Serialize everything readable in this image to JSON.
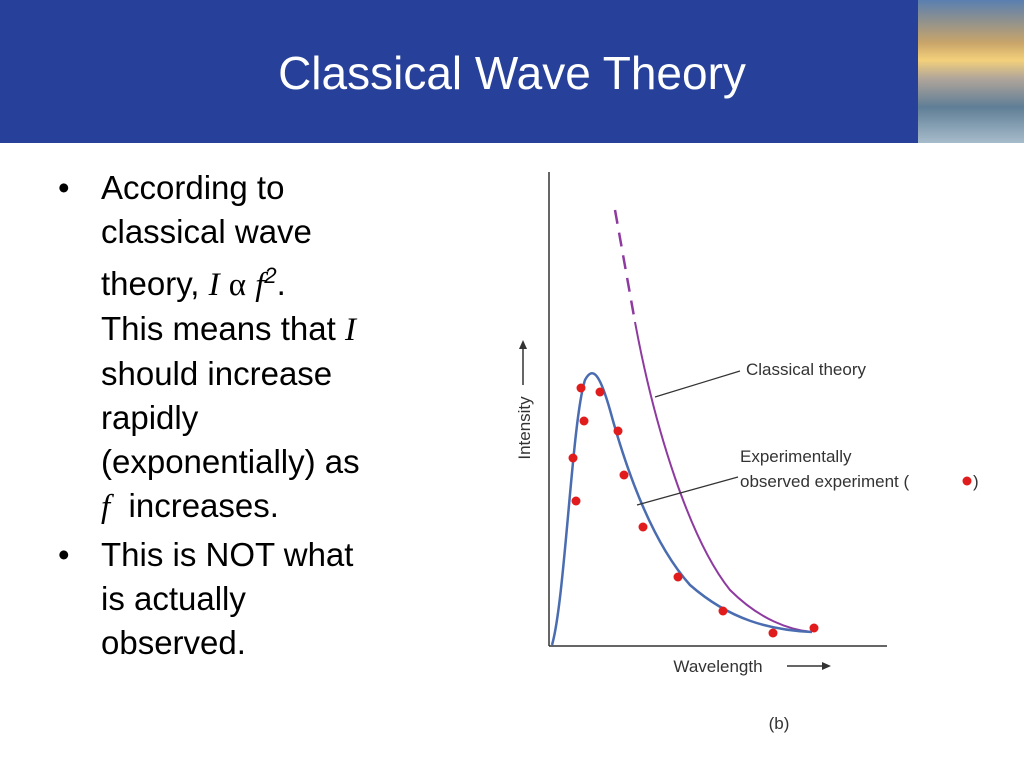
{
  "title": "Classical Wave Theory",
  "bullets": [
    {
      "lines": [
        [
          "According to"
        ],
        [
          "classical wave"
        ],
        [
          "theory,",
          "I",
          "α",
          "f",
          "2",
          "."
        ],
        [
          "This means that",
          "I"
        ],
        [
          "should increase"
        ],
        [
          "rapidly"
        ],
        [
          "(exponentially) as"
        ],
        [
          "f",
          "increases."
        ]
      ]
    },
    {
      "lines": [
        [
          "This is NOT what"
        ],
        [
          "is actually"
        ],
        [
          "observed."
        ]
      ]
    }
  ],
  "diagram": {
    "y_label": "Intensity",
    "x_label": "Wavelength",
    "classical_label": "Classical theory",
    "experiment_label": [
      "Experimentally",
      "observed experiment (",
      ")"
    ],
    "caption": "(b)"
  }
}
